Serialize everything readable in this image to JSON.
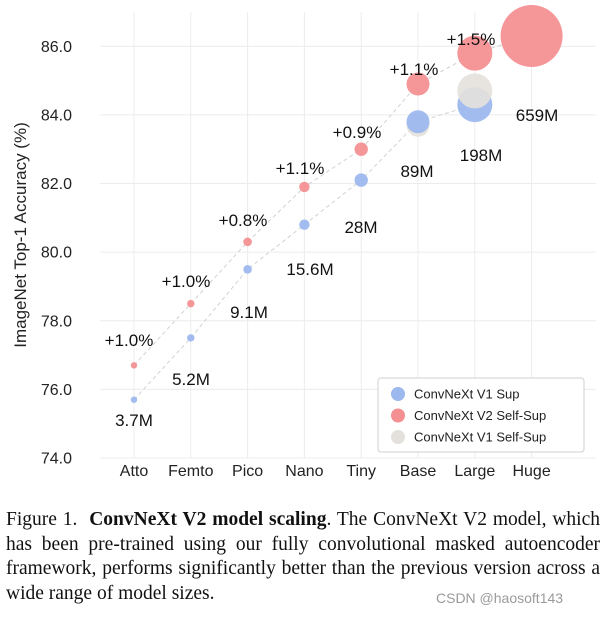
{
  "chart_data": {
    "type": "scatter",
    "ylabel": "ImageNet Top-1 Accuracy (%)",
    "xlabel": "",
    "categories": [
      "Atto",
      "Femto",
      "Pico",
      "Nano",
      "Tiny",
      "Base",
      "Large",
      "Huge"
    ],
    "ylim": [
      74.0,
      87.0
    ],
    "yticks": [
      74.0,
      76.0,
      78.0,
      80.0,
      82.0,
      84.0,
      86.0
    ],
    "ytick_labels": [
      "74.0",
      "76.0",
      "78.0",
      "80.0",
      "82.0",
      "84.0",
      "86.0"
    ],
    "grid": true,
    "legend_position": "bottom-right",
    "series": [
      {
        "name": "ConvNeXt V1 Sup",
        "color": "#9db8ef",
        "values": [
          75.7,
          77.5,
          79.5,
          80.8,
          82.1,
          83.8,
          84.3,
          null
        ]
      },
      {
        "name": "ConvNeXt V2 Self-Sup",
        "color": "#f49092",
        "values": [
          76.7,
          78.5,
          80.3,
          81.9,
          83.0,
          84.9,
          85.8,
          86.3
        ]
      },
      {
        "name": "ConvNeXt V1 Self-Sup",
        "color": "#e4e1dd",
        "values": [
          null,
          null,
          null,
          null,
          null,
          83.7,
          84.7,
          null
        ]
      }
    ],
    "model_sizes": [
      "3.7M",
      "5.2M",
      "9.1M",
      "15.6M",
      "28M",
      "89M",
      "198M",
      "659M"
    ],
    "gains": [
      "+1.0%",
      "+1.0%",
      "+0.8%",
      "+1.1%",
      "+0.9%",
      "+1.1%",
      "+1.5%",
      null
    ]
  },
  "caption": {
    "prefix": "Figure 1.",
    "title": "ConvNeXt V2 model scaling",
    "text": ". The ConvNeXt V2 model, which has been pre-trained using our fully convolutional masked autoencoder framework, performs significantly better than the previous version across a wide range of model sizes."
  },
  "watermark": "CSDN @haosoft143"
}
